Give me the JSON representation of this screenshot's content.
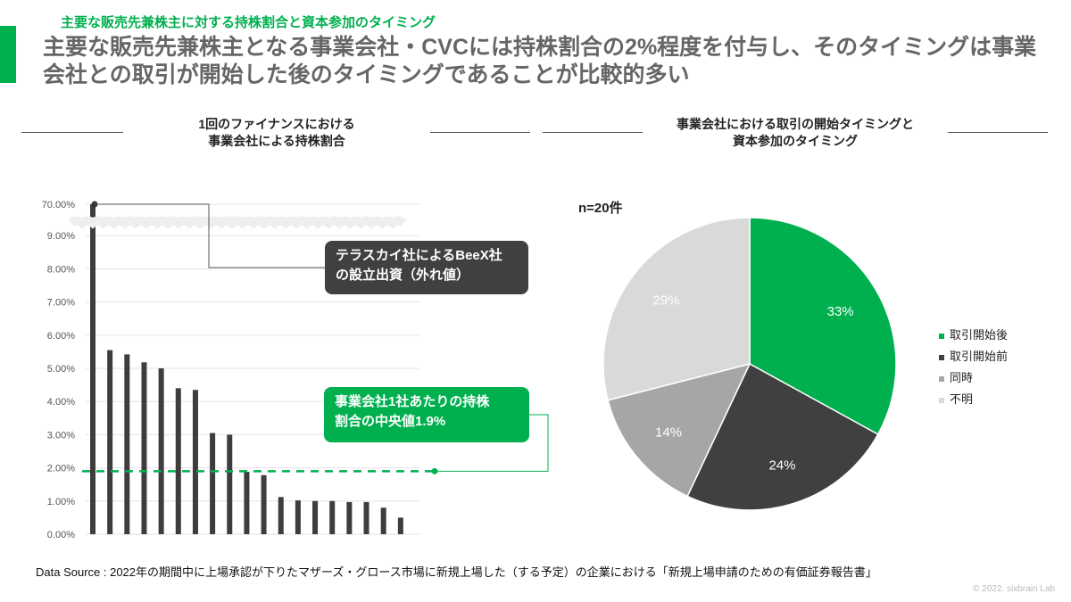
{
  "header": {
    "subtitle": "主要な販売先兼株主に対する持株割合と資本参加のタイミング",
    "title": "主要な販売先兼株主となる事業会社・CVCには持株割合の2%程度を付与し、そのタイミングは事業会社との取引が開始した後のタイミングであることが比較的多い"
  },
  "left_section": {
    "title_line1": "1回のファイナンスにおける",
    "title_line2": "事業会社による持株割合"
  },
  "right_section": {
    "title_line1": "事業会社における取引の開始タイミングと",
    "title_line2": "資本参加のタイミング"
  },
  "callouts": {
    "outlier_line1": "テラスカイ社によるBeeX社",
    "outlier_line2": "の設立出資（外れ値）",
    "median_line1": "事業会社1社あたりの持株",
    "median_line2": "割合の中央値1.9%"
  },
  "footer": {
    "source": "Data Source : 2022年の期間中に上場承認が下りたマザーズ・グロース市場に新規上場した（する予定）の企業における「新規上場申請のための有価証券報告書」",
    "copyright": "© 2022. sixbrain Lab"
  },
  "colors": {
    "accent": "#00b04f",
    "bar": "#3d3d3d",
    "median_line": "#00b04f",
    "callout_dark": "#404040",
    "callout_green": "#00b04f"
  },
  "chart_data": [
    {
      "type": "bar",
      "title": "1回のファイナンスにおける事業会社による持株割合",
      "values": [
        70.0,
        5.55,
        5.42,
        5.18,
        5.0,
        4.4,
        4.35,
        3.05,
        3.0,
        1.88,
        1.78,
        1.12,
        1.02,
        1.0,
        1.0,
        0.97,
        0.97,
        0.8,
        0.5
      ],
      "unit": "%",
      "y_ticks": [
        "0.00%",
        "1.00%",
        "2.00%",
        "3.00%",
        "4.00%",
        "5.00%",
        "6.00%",
        "7.00%",
        "8.00%",
        "9.00%",
        "70.00%"
      ],
      "ylim": [
        0,
        10
      ],
      "axis_break": "between 9.00% and 70.00%",
      "median": 1.9,
      "grid": true
    },
    {
      "type": "pie",
      "title": "事業会社における取引の開始タイミングと資本参加のタイミング",
      "annotation": "n=20件",
      "slices": [
        {
          "label": "取引開始後",
          "value": 33,
          "color": "#00b04f",
          "data_label": "33%"
        },
        {
          "label": "取引開始前",
          "value": 24,
          "color": "#404040",
          "data_label": "24%"
        },
        {
          "label": "同時",
          "value": 14,
          "color": "#a6a6a6",
          "data_label": "14%"
        },
        {
          "label": "不明",
          "value": 29,
          "color": "#d9d9d9",
          "data_label": "29%"
        }
      ],
      "legend_position": "right"
    }
  ]
}
